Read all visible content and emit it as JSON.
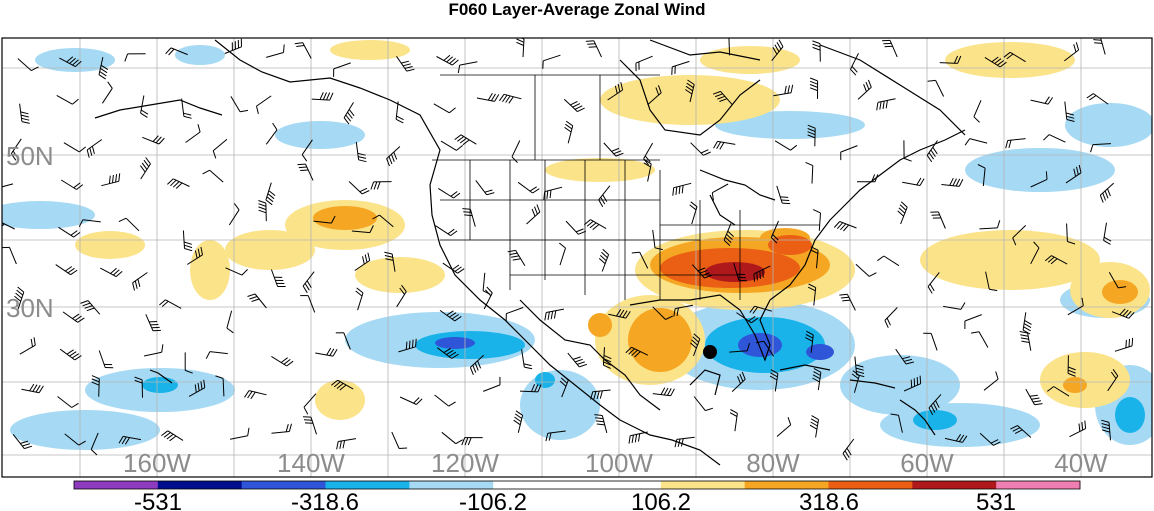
{
  "title": "F060 Layer-Average Zonal Wind",
  "lat_labels": [
    "50N",
    "30N"
  ],
  "lon_labels": [
    "160W",
    "140W",
    "120W",
    "100W",
    "80W",
    "60W",
    "40W"
  ],
  "colorbar": {
    "labels": [
      "-531",
      "-318.6",
      "-106.2",
      "106.2",
      "318.6",
      "531"
    ],
    "colors": [
      "#8e3bbf",
      "#000d8c",
      "#2f55d9",
      "#19b3ea",
      "#a5d9f4",
      "#ffffff",
      "#ffffff",
      "#fbe38a",
      "#f5a623",
      "#ea5f13",
      "#b0191c",
      "#ef7eb2"
    ]
  },
  "map": {
    "storm_marker": "black-dot",
    "wind_barbs": "black-barbs",
    "palette": {
      "light_blue": "#a5d9f4",
      "medium_blue": "#19b3ea",
      "dark_blue": "#2f55d9",
      "yellow": "#fbe38a",
      "orange": "#f5a623",
      "red_orange": "#ea5f13",
      "dark_red": "#b0191c"
    }
  }
}
